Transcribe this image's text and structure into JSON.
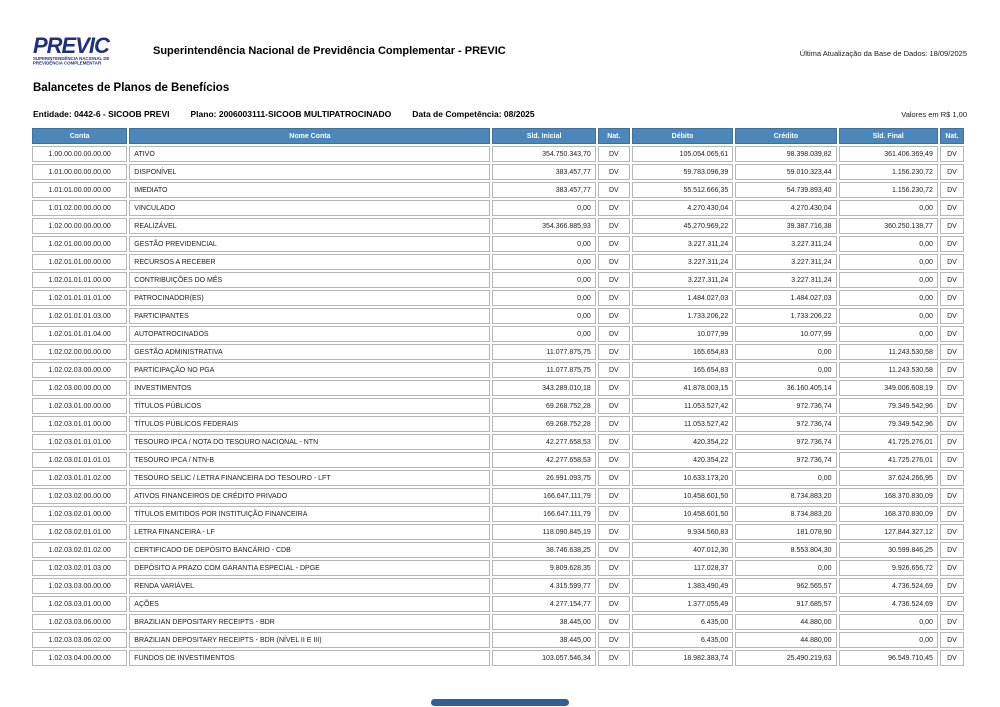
{
  "header": {
    "brand": "PREVIC",
    "brand_subtitle_line1": "SUPERINTENDÊNCIA NACIONAL DE",
    "brand_subtitle_line2": "PREVIDÊNCIA COMPLEMENTAR",
    "title": "Superintendência Nacional de Previdência Complementar - PREVIC",
    "last_update": "Última Atualização da Base de Dados: 18/09/2025"
  },
  "report": {
    "title": "Balancetes de Planos de Benefícios",
    "entidade": "Entidade: 0442-6 - SICOOB PREVI",
    "plano": "Plano: 2006003111-SICOOB MULTIPATROCINADO",
    "competencia": "Data de Competência: 08/2025",
    "currency_note": "Valores em R$ 1,00"
  },
  "table": {
    "columns": [
      "Conta",
      "Nome Conta",
      "Sld. Inicial",
      "Nat.",
      "Débito",
      "Crédito",
      "Sld. Final",
      "Nat."
    ],
    "rows": [
      [
        "1.00.00.00.00.00.00",
        "ATIVO",
        "354.750.343,70",
        "DV",
        "105.054.065,61",
        "98.398.039,82",
        "361.406.369,49",
        "DV"
      ],
      [
        "1.01.00.00.00.00.00",
        "DISPONÍVEL",
        "383.457,77",
        "DV",
        "59.783.096,39",
        "59.010.323,44",
        "1.156.230,72",
        "DV"
      ],
      [
        "1.01.01.00.00.00.00",
        "IMEDIATO",
        "383.457,77",
        "DV",
        "55.512.666,35",
        "54.739.893,40",
        "1.156.230,72",
        "DV"
      ],
      [
        "1.01.02.00.00.00.00",
        "VINCULADO",
        "0,00",
        "DV",
        "4.270.430,04",
        "4.270.430,04",
        "0,00",
        "DV"
      ],
      [
        "1.02.00.00.00.00.00",
        "REALIZÁVEL",
        "354.366.885,93",
        "DV",
        "45.270.969,22",
        "39.387.716,38",
        "360.250.138,77",
        "DV"
      ],
      [
        "1.02.01.00.00.00.00",
        "GESTÃO PREVIDENCIAL",
        "0,00",
        "DV",
        "3.227.311,24",
        "3.227.311,24",
        "0,00",
        "DV"
      ],
      [
        "1.02.01.01.00.00.00",
        "RECURSOS A RECEBER",
        "0,00",
        "DV",
        "3.227.311,24",
        "3.227.311,24",
        "0,00",
        "DV"
      ],
      [
        "1.02.01.01.01.00.00",
        "CONTRIBUIÇÕES DO MÊS",
        "0,00",
        "DV",
        "3.227.311,24",
        "3.227.311,24",
        "0,00",
        "DV"
      ],
      [
        "1.02.01.01.01.01.00",
        "PATROCINADOR(ES)",
        "0,00",
        "DV",
        "1.484.027,03",
        "1.484.027,03",
        "0,00",
        "DV"
      ],
      [
        "1.02.01.01.01.03.00",
        "PARTICIPANTES",
        "0,00",
        "DV",
        "1.733.206,22",
        "1.733.206,22",
        "0,00",
        "DV"
      ],
      [
        "1.02.01.01.01.04.00",
        "AUTOPATROCINADOS",
        "0,00",
        "DV",
        "10.077,99",
        "10.077,99",
        "0,00",
        "DV"
      ],
      [
        "1.02.02.00.00.00.00",
        "GESTÃO ADMINISTRATIVA",
        "11.077.875,75",
        "DV",
        "165.654,83",
        "0,00",
        "11.243.530,58",
        "DV"
      ],
      [
        "1.02.02.03.00.00.00",
        "PARTICIPAÇÃO NO PGA",
        "11.077.875,75",
        "DV",
        "165.654,83",
        "0,00",
        "11.243.530,58",
        "DV"
      ],
      [
        "1.02.03.00.00.00.00",
        "INVESTIMENTOS",
        "343.289.010,18",
        "DV",
        "41.878.003,15",
        "36.160.405,14",
        "349.006.608,19",
        "DV"
      ],
      [
        "1.02.03.01.00.00.00",
        "TÍTULOS PÚBLICOS",
        "69.268.752,28",
        "DV",
        "11.053.527,42",
        "972.736,74",
        "79.349.542,96",
        "DV"
      ],
      [
        "1.02.03.01.01.00.00",
        "TÍTULOS PÚBLICOS FEDERAIS",
        "69.268.752,28",
        "DV",
        "11.053.527,42",
        "972.736,74",
        "79.349.542,96",
        "DV"
      ],
      [
        "1.02.03.01.01.01.00",
        "TESOURO IPCA / NOTA DO TESOURO NACIONAL - NTN",
        "42.277.658,53",
        "DV",
        "420.354,22",
        "972.736,74",
        "41.725.276,01",
        "DV"
      ],
      [
        "1.02.03.01.01.01.01",
        "TESOURO IPCA / NTN-B",
        "42.277.658,53",
        "DV",
        "420.354,22",
        "972.736,74",
        "41.725.276,01",
        "DV"
      ],
      [
        "1.02.03.01.01.02.00",
        "TESOURO SELIC / LETRA FINANCEIRA DO TESOURO - LFT",
        "26.991.093,75",
        "DV",
        "10.633.173,20",
        "0,00",
        "37.624.266,95",
        "DV"
      ],
      [
        "1.02.03.02.00.00.00",
        "ATIVOS FINANCEIROS DE CRÉDITO PRIVADO",
        "166.647.111,79",
        "DV",
        "10.458.601,50",
        "8.734.883,20",
        "168.370.830,09",
        "DV"
      ],
      [
        "1.02.03.02.01.00.00",
        "TÍTULOS EMITIDOS POR INSTITUIÇÃO FINANCEIRA",
        "166.647.111,79",
        "DV",
        "10.458.601,50",
        "8.734.883,20",
        "168.370.830,09",
        "DV"
      ],
      [
        "1.02.03.02.01.01.00",
        "LETRA FINANCEIRA - LF",
        "118.090.845,19",
        "DV",
        "9.934.560,83",
        "181.078,90",
        "127.844.327,12",
        "DV"
      ],
      [
        "1.02.03.02.01.02.00",
        "CERTIFICADO DE DEPÓSITO BANCÁRIO - CDB",
        "38.746.638,25",
        "DV",
        "407.012,30",
        "8.553.804,30",
        "30.599.846,25",
        "DV"
      ],
      [
        "1.02.03.02.01.03.00",
        "DEPÓSITO A PRAZO COM GARANTIA ESPECIAL - DPGE",
        "9.809.628,35",
        "DV",
        "117.028,37",
        "0,00",
        "9.926.656,72",
        "DV"
      ],
      [
        "1.02.03.03.00.00.00",
        "RENDA VARIÁVEL",
        "4.315.599,77",
        "DV",
        "1.383.490,49",
        "962.565,57",
        "4.736.524,69",
        "DV"
      ],
      [
        "1.02.03.03.01.00.00",
        "AÇÕES",
        "4.277.154,77",
        "DV",
        "1.377.055,49",
        "917.685,57",
        "4.736.524,69",
        "DV"
      ],
      [
        "1.02.03.03.06.00.00",
        "BRAZILIAN DEPOSITARY RECEIPTS - BDR",
        "38.445,00",
        "DV",
        "6.435,00",
        "44.880,00",
        "0,00",
        "DV"
      ],
      [
        "1.02.03.03.06.02.00",
        "BRAZILIAN DEPOSITARY RECEIPTS - BDR  (NÍVEL II E III)",
        "38.445,00",
        "DV",
        "6.435,00",
        "44.880,00",
        "0,00",
        "DV"
      ],
      [
        "1.02.03.04.00.00.00",
        "FUNDOS DE INVESTIMENTOS",
        "103.057.546,34",
        "DV",
        "18.982.383,74",
        "25.490.219,63",
        "96.549.710,45",
        "DV"
      ]
    ]
  },
  "colors": {
    "table_header_blue": "#4c87b9",
    "brand_navy": "#20307e",
    "cell_border_gray": "#b6b6b6",
    "footer_bar_blue": "#2f5f96"
  }
}
